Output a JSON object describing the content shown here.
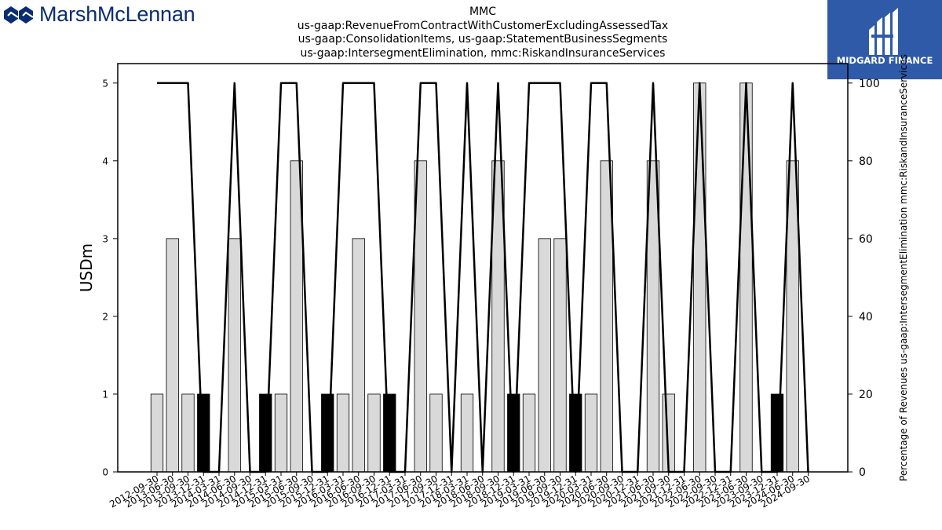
{
  "header": {
    "company_logo_text": "MarshMcLennan",
    "partner_logo_text": "MIDGARD FINANCE"
  },
  "chart_data": {
    "type": "bar",
    "title_lines": [
      "MMC",
      "us-gaap:RevenueFromContractWithCustomerExcludingAssessedTax",
      "us-gaap:ConsolidationItems, us-gaap:StatementBusinessSegments",
      "us-gaap:IntersegmentElimination, mmc:RiskandInsuranceServices"
    ],
    "ylabel": "USDm",
    "y2label": "Percentage of Revenues us-gaap:IntersegmentElimination mmc:RiskandInsuranceServices",
    "ylim": [
      0,
      5.25
    ],
    "y2lim": [
      0,
      105
    ],
    "yticks": [
      0,
      1,
      2,
      3,
      4,
      5
    ],
    "y2ticks": [
      0,
      20,
      40,
      60,
      80,
      100
    ],
    "categories": [
      "2012-09-30",
      "2013-06-30",
      "2013-09-30",
      "2013-12-31",
      "2014-03-31",
      "2014-06-30",
      "2014-09-30",
      "2014-12-31",
      "2015-03-31",
      "2015-06-30",
      "2015-09-30",
      "2015-12-31",
      "2016-03-31",
      "2016-06-30",
      "2016-09-30",
      "2016-12-31",
      "2017-03-31",
      "2017-06-30",
      "2017-09-30",
      "2017-12-31",
      "2018-03-31",
      "2018-06-30",
      "2018-09-30",
      "2018-12-31",
      "2019-03-31",
      "2019-06-30",
      "2019-09-30",
      "2019-12-31",
      "2020-03-31",
      "2020-06-30",
      "2020-09-30",
      "2020-12-31",
      "2021-06-30",
      "2021-09-30",
      "2021-12-31",
      "2022-06-30",
      "2022-09-30",
      "2022-12-31",
      "2023-06-30",
      "2023-09-30",
      "2023-12-31",
      "2024-06-30",
      "2024-09-30"
    ],
    "series": [
      {
        "type": "bar",
        "values": [
          1,
          3,
          1,
          1,
          0,
          3,
          0,
          1,
          1,
          4,
          0,
          1,
          1,
          3,
          1,
          1,
          0,
          4,
          1,
          0,
          1,
          0,
          4,
          1,
          1,
          3,
          3,
          1,
          1,
          4,
          0,
          0,
          4,
          1,
          0,
          5,
          0,
          0,
          5,
          0,
          1,
          4,
          0
        ],
        "negative_flags": [
          0,
          0,
          0,
          1,
          0,
          0,
          0,
          1,
          0,
          0,
          0,
          1,
          0,
          0,
          0,
          1,
          0,
          0,
          0,
          0,
          0,
          0,
          0,
          1,
          0,
          0,
          0,
          1,
          0,
          0,
          0,
          0,
          0,
          0,
          0,
          0,
          0,
          0,
          0,
          0,
          1,
          0,
          0
        ],
        "colors": {
          "positive": "#d9d9d9",
          "negative": "#000000"
        }
      },
      {
        "type": "line",
        "axis": "secondary",
        "values": [
          100,
          100,
          100,
          0,
          0,
          100,
          0,
          0,
          100,
          100,
          0,
          0,
          100,
          100,
          100,
          0,
          0,
          100,
          100,
          0,
          100,
          0,
          100,
          0,
          100,
          100,
          100,
          0,
          100,
          100,
          0,
          0,
          100,
          0,
          0,
          100,
          0,
          0,
          100,
          0,
          0,
          100,
          0
        ],
        "color": "#000000"
      }
    ]
  }
}
